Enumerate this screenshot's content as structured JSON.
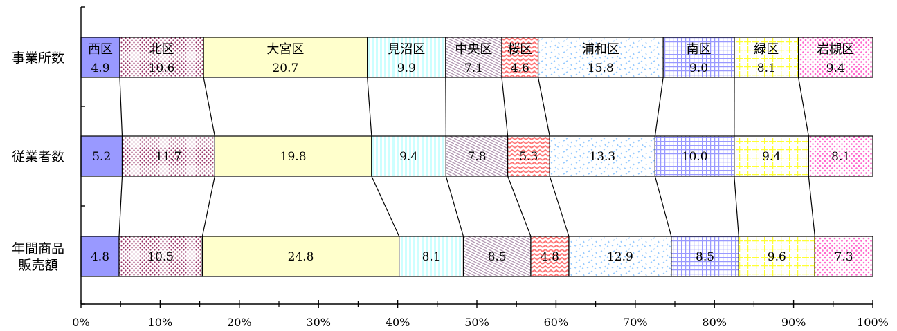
{
  "chart_data": {
    "type": "bar",
    "stacked": true,
    "orientation": "horizontal",
    "percent": true,
    "categories": [
      "事業所数",
      "従業者数",
      "年間商品\n販売額"
    ],
    "series": [
      {
        "name": "西区",
        "values": [
          4.9,
          5.2,
          4.8
        ],
        "color": "#9999ff",
        "pattern": "solid"
      },
      {
        "name": "北区",
        "values": [
          10.6,
          11.7,
          10.5
        ],
        "color": "#993366",
        "pattern": "dots-dense"
      },
      {
        "name": "大宮区",
        "values": [
          20.7,
          19.8,
          24.8
        ],
        "color": "#ffffcc",
        "pattern": "solid"
      },
      {
        "name": "見沼区",
        "values": [
          9.9,
          9.4,
          8.1
        ],
        "color": "#ccffff",
        "pattern": "vertical-stripes"
      },
      {
        "name": "中央区",
        "values": [
          7.1,
          7.8,
          8.5
        ],
        "color": "#cc99cc",
        "pattern": "diagonal"
      },
      {
        "name": "桜区",
        "values": [
          4.6,
          5.3,
          4.8
        ],
        "color": "#ff7777",
        "pattern": "zigzag"
      },
      {
        "name": "浦和区",
        "values": [
          15.8,
          13.3,
          12.9
        ],
        "color": "#99ccff",
        "pattern": "confetti"
      },
      {
        "name": "南区",
        "values": [
          9.0,
          10.0,
          8.5
        ],
        "color": "#9999ff",
        "pattern": "grid"
      },
      {
        "name": "緑区",
        "values": [
          8.1,
          9.4,
          9.6
        ],
        "color": "#ffff66",
        "pattern": "dashed-grid"
      },
      {
        "name": "岩槻区",
        "values": [
          9.4,
          8.1,
          7.3
        ],
        "color": "#ff66cc",
        "pattern": "dots"
      }
    ],
    "data_labels": [
      [
        "4.9",
        "10.6",
        "20.7",
        "9.9",
        "7.1",
        "4.6",
        "15.8",
        "9.0",
        "8.1",
        "9.4"
      ],
      [
        "5.2",
        "11.7",
        "19.8",
        "9.4",
        "7.8",
        "5.3",
        "13.3",
        "10.0",
        "9.4",
        "8.1"
      ],
      [
        "4.8",
        "10.5",
        "24.8",
        "8.1",
        "8.5",
        "4.8",
        "12.9",
        "8.5",
        "9.6",
        "7.3"
      ]
    ],
    "xaxis": {
      "ticks": [
        "0%",
        "10%",
        "20%",
        "30%",
        "40%",
        "50%",
        "60%",
        "70%",
        "80%",
        "90%",
        "100%"
      ],
      "range": [
        0,
        100
      ]
    },
    "series_lines": true,
    "legend": "inside-first-bar"
  }
}
